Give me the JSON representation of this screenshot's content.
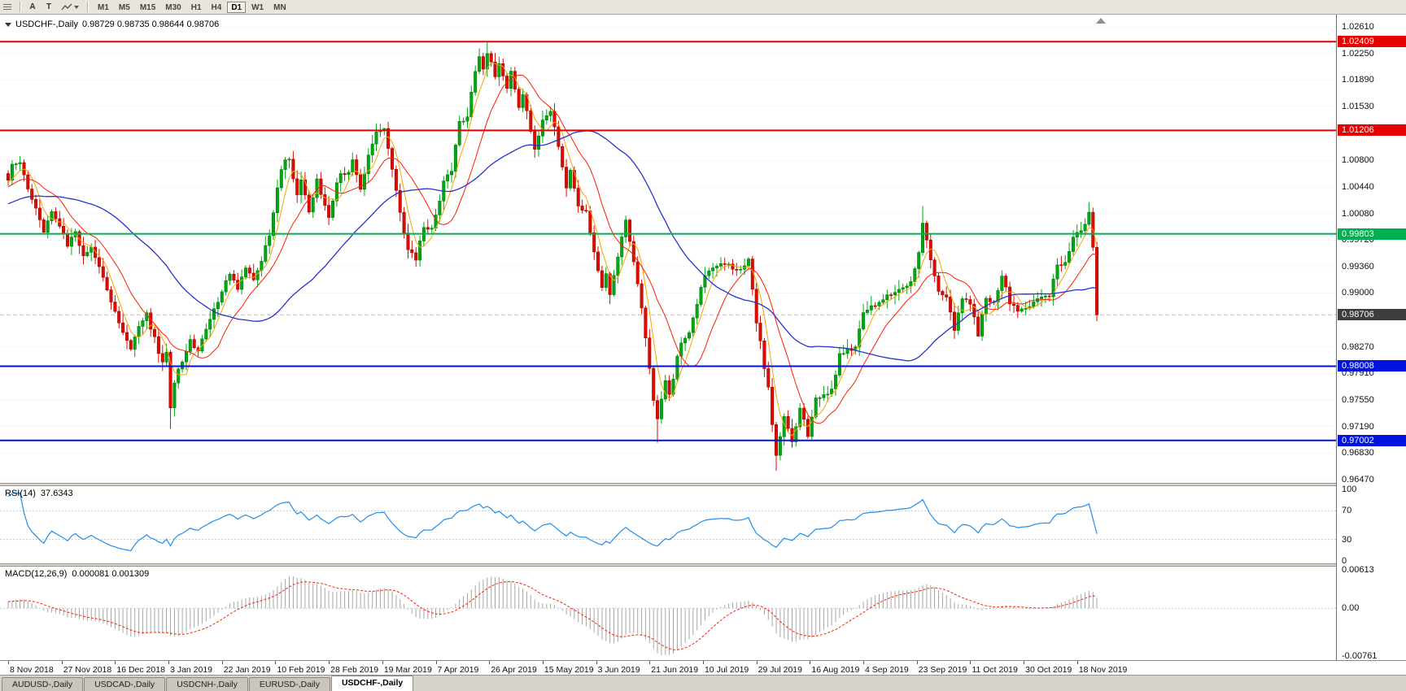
{
  "toolbar": {
    "tool_a": "A",
    "tool_t": "T",
    "timeframes": [
      "M1",
      "M5",
      "M15",
      "M30",
      "H1",
      "H4",
      "D1",
      "W1",
      "MN"
    ],
    "selected_timeframe": "D1"
  },
  "chart": {
    "title": "USDCHF-,Daily",
    "ohlc_text": "0.98729 0.98735 0.98644 0.98706"
  },
  "axis": {
    "y_ticks": [
      "1.02610",
      "1.02250",
      "1.01890",
      "1.01530",
      "1.00800",
      "1.00440",
      "1.00080",
      "0.99720",
      "0.99360",
      "0.99000",
      "0.98270",
      "0.97910",
      "0.97550",
      "0.97190",
      "0.96830",
      "0.96470"
    ],
    "dates": [
      "8 Nov 2018",
      "27 Nov 2018",
      "16 Dec 2018",
      "3 Jan 2019",
      "22 Jan 2019",
      "10 Feb 2019",
      "28 Feb 2019",
      "19 Mar 2019",
      "7 Apr 2019",
      "26 Apr 2019",
      "15 May 2019",
      "3 Jun 2019",
      "21 Jun 2019",
      "10 Jul 2019",
      "29 Jul 2019",
      "16 Aug 2019",
      "4 Sep 2019",
      "23 Sep 2019",
      "11 Oct 2019",
      "30 Oct 2019",
      "18 Nov 2019"
    ]
  },
  "levels": [
    {
      "label": "1.02409",
      "price": 1.02409,
      "color": "#e60000"
    },
    {
      "label": "1.01206",
      "price": 1.01206,
      "color": "#e60000"
    },
    {
      "label": "0.99803",
      "price": 0.99803,
      "color": "#00b050"
    },
    {
      "label": "0.98008",
      "price": 0.98008,
      "color": "#0012dd"
    },
    {
      "label": "0.97002",
      "price": 0.97002,
      "color": "#0012dd"
    }
  ],
  "current_price": {
    "label": "0.98706",
    "price": 0.98706,
    "badge_color": "#3d3d3d"
  },
  "rsi": {
    "name": "RSI(14)",
    "value": "37.6343",
    "scale": [
      "100",
      "70",
      "30",
      "0"
    ]
  },
  "macd": {
    "name": "MACD(12,26,9)",
    "values": "0.000081 0.001309",
    "scale": [
      "0.00613",
      "0.00",
      "-0.00761"
    ]
  },
  "tabs": [
    {
      "label": "AUDUSD-,Daily",
      "active": false
    },
    {
      "label": "USDCAD-,Daily",
      "active": false
    },
    {
      "label": "USDCNH-,Daily",
      "active": false
    },
    {
      "label": "EURUSD-,Daily",
      "active": false
    },
    {
      "label": "USDCHF-,Daily",
      "active": true
    }
  ],
  "chart_data": {
    "type": "candlestick",
    "symbol": "USDCHF",
    "timeframe": "Daily",
    "price_axis": {
      "top": 1.0261,
      "bottom": 0.9647
    },
    "candle_count": 276,
    "last_close": 0.98706,
    "indicator_settings": {
      "sma_periods": [
        5,
        13,
        40
      ],
      "rsi_period": 14,
      "macd": [
        12,
        26,
        9
      ]
    },
    "close_anchors": [
      [
        0,
        1.0055
      ],
      [
        1,
        1.0072
      ],
      [
        3,
        1.0078
      ],
      [
        5,
        1.0042
      ],
      [
        7,
        1.0015
      ],
      [
        9,
        0.9985
      ],
      [
        11,
        1.0012
      ],
      [
        13,
        0.9992
      ],
      [
        15,
        0.9965
      ],
      [
        17,
        0.998
      ],
      [
        19,
        0.9948
      ],
      [
        21,
        0.9962
      ],
      [
        23,
        0.9935
      ],
      [
        25,
        0.9905
      ],
      [
        27,
        0.9872
      ],
      [
        29,
        0.985
      ],
      [
        31,
        0.9825
      ],
      [
        33,
        0.9855
      ],
      [
        35,
        0.987
      ],
      [
        37,
        0.9838
      ],
      [
        39,
        0.9805
      ],
      [
        40,
        0.9818
      ],
      [
        41,
        0.9745
      ],
      [
        42,
        0.9778
      ],
      [
        44,
        0.981
      ],
      [
        46,
        0.9835
      ],
      [
        48,
        0.982
      ],
      [
        50,
        0.9852
      ],
      [
        52,
        0.9878
      ],
      [
        54,
        0.9902
      ],
      [
        56,
        0.9925
      ],
      [
        58,
        0.9908
      ],
      [
        60,
        0.9935
      ],
      [
        62,
        0.992
      ],
      [
        64,
        0.9945
      ],
      [
        66,
        0.9978
      ],
      [
        68,
        1.0045
      ],
      [
        69,
        1.007
      ],
      [
        71,
        1.0085
      ],
      [
        72,
        1.0058
      ],
      [
        73,
        1.0032
      ],
      [
        74,
        1.0052
      ],
      [
        76,
        1.0008
      ],
      [
        78,
        1.0055
      ],
      [
        80,
        1.0018
      ],
      [
        81,
        1.0002
      ],
      [
        83,
        1.0048
      ],
      [
        84,
        1.0062
      ],
      [
        86,
        1.0065
      ],
      [
        87,
        1.0082
      ],
      [
        89,
        1.0042
      ],
      [
        91,
        1.0085
      ],
      [
        93,
        1.0118
      ],
      [
        95,
        1.012
      ],
      [
        96,
        1.0098
      ],
      [
        98,
        1.0042
      ],
      [
        100,
        0.9982
      ],
      [
        101,
        0.9958
      ],
      [
        103,
        0.9948
      ],
      [
        105,
        0.9988
      ],
      [
        107,
        0.9985
      ],
      [
        109,
        1.0028
      ],
      [
        110,
        1.0052
      ],
      [
        112,
        1.0065
      ],
      [
        114,
        1.013
      ],
      [
        116,
        1.0142
      ],
      [
        118,
        1.02
      ],
      [
        119,
        1.0222
      ],
      [
        120,
        1.0205
      ],
      [
        121,
        1.0228
      ],
      [
        123,
        1.0192
      ],
      [
        124,
        1.0212
      ],
      [
        126,
        1.0178
      ],
      [
        127,
        1.0198
      ],
      [
        129,
        1.0155
      ],
      [
        130,
        1.0172
      ],
      [
        132,
        1.012
      ],
      [
        133,
        1.0092
      ],
      [
        135,
        1.0138
      ],
      [
        137,
        1.0148
      ],
      [
        139,
        1.0098
      ],
      [
        141,
        1.0045
      ],
      [
        142,
        1.0068
      ],
      [
        144,
        1.0015
      ],
      [
        146,
        1.0012
      ],
      [
        148,
        0.9958
      ],
      [
        150,
        0.9905
      ],
      [
        151,
        0.9928
      ],
      [
        152,
        0.9898
      ],
      [
        154,
        0.9948
      ],
      [
        156,
        0.9998
      ],
      [
        158,
        0.9945
      ],
      [
        160,
        0.9878
      ],
      [
        162,
        0.9795
      ],
      [
        163,
        0.9752
      ],
      [
        164,
        0.9728
      ],
      [
        166,
        0.9782
      ],
      [
        167,
        0.976
      ],
      [
        169,
        0.9812
      ],
      [
        170,
        0.9835
      ],
      [
        172,
        0.9845
      ],
      [
        174,
        0.9888
      ],
      [
        175,
        0.9905
      ],
      [
        176,
        0.9925
      ],
      [
        178,
        0.9932
      ],
      [
        180,
        0.9938
      ],
      [
        182,
        0.9942
      ],
      [
        184,
        0.9928
      ],
      [
        186,
        0.994
      ],
      [
        187,
        0.9948
      ],
      [
        188,
        0.9902
      ],
      [
        189,
        0.9862
      ],
      [
        190,
        0.9832
      ],
      [
        191,
        0.9795
      ],
      [
        192,
        0.9772
      ],
      [
        193,
        0.9725
      ],
      [
        194,
        0.9682
      ],
      [
        196,
        0.9735
      ],
      [
        198,
        0.9698
      ],
      [
        200,
        0.9745
      ],
      [
        202,
        0.9708
      ],
      [
        204,
        0.9755
      ],
      [
        206,
        0.9762
      ],
      [
        208,
        0.9768
      ],
      [
        210,
        0.9815
      ],
      [
        212,
        0.9822
      ],
      [
        214,
        0.9828
      ],
      [
        216,
        0.9875
      ],
      [
        218,
        0.9882
      ],
      [
        220,
        0.9888
      ],
      [
        222,
        0.9895
      ],
      [
        224,
        0.9902
      ],
      [
        226,
        0.9908
      ],
      [
        228,
        0.9915
      ],
      [
        230,
        0.9958
      ],
      [
        231,
        0.9992
      ],
      [
        233,
        0.9948
      ],
      [
        235,
        0.9902
      ],
      [
        237,
        0.9898
      ],
      [
        239,
        0.9852
      ],
      [
        241,
        0.9895
      ],
      [
        243,
        0.9888
      ],
      [
        245,
        0.9845
      ],
      [
        247,
        0.9892
      ],
      [
        249,
        0.9888
      ],
      [
        251,
        0.9925
      ],
      [
        253,
        0.9888
      ],
      [
        255,
        0.9878
      ],
      [
        257,
        0.9882
      ],
      [
        259,
        0.9888
      ],
      [
        261,
        0.9892
      ],
      [
        263,
        0.9898
      ],
      [
        265,
        0.9938
      ],
      [
        267,
        0.9942
      ],
      [
        269,
        0.9975
      ],
      [
        271,
        0.9985
      ],
      [
        272,
        0.9995
      ],
      [
        273,
        1.0012
      ],
      [
        274,
        0.9965
      ],
      [
        275,
        0.98706
      ]
    ],
    "overrides": {
      "41": {
        "low": 0.9716
      },
      "95": {
        "high": 1.0124
      },
      "119": {
        "high": 1.0232
      },
      "121": {
        "high": 1.0241
      },
      "156": {
        "high": 1.0005
      },
      "164": {
        "low": 0.9697
      },
      "194": {
        "low": 0.9659
      },
      "231": {
        "high": 1.0018
      },
      "245": {
        "low": 0.9841
      },
      "273": {
        "high": 1.0023
      },
      "275": {
        "low": 0.9862
      }
    }
  }
}
